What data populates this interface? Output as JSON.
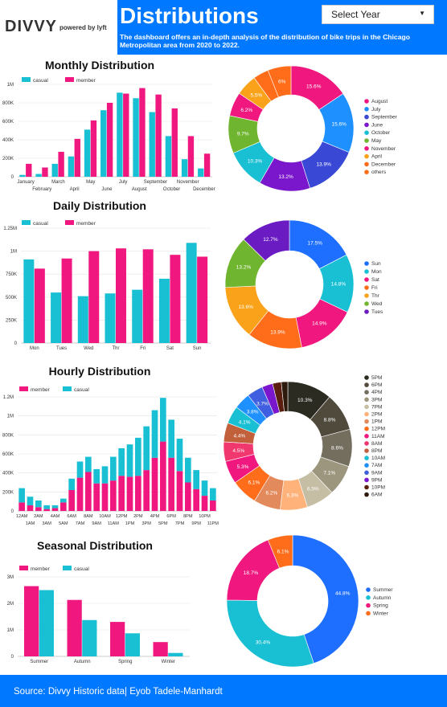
{
  "header": {
    "logo_text": "DIVVY",
    "logo_powered": "powered by lyft",
    "title": "Distributions",
    "description": "The dashboard offers an in-depth analysis of the distribution of bike trips in the Chicago Metropolitan area from 2020 to 2022.",
    "select_label": "Select Year"
  },
  "footer": {
    "source": "Source: Divvy Historic data| Eyob Tadele-Manhardt"
  },
  "colors": {
    "header_bg": "#0078ff",
    "member": "#f0187f",
    "casual": "#19bfd3"
  },
  "chart_data": [
    {
      "type": "bar",
      "title": "Monthly Distribution",
      "categories": [
        "January",
        "February",
        "March",
        "April",
        "May",
        "June",
        "July",
        "August",
        "September",
        "October",
        "November",
        "December"
      ],
      "series": [
        {
          "name": "casual",
          "values": [
            20000,
            30000,
            140000,
            220000,
            510000,
            720000,
            910000,
            850000,
            700000,
            440000,
            190000,
            90000
          ]
        },
        {
          "name": "member",
          "values": [
            140000,
            100000,
            270000,
            410000,
            610000,
            800000,
            900000,
            960000,
            890000,
            740000,
            440000,
            250000
          ]
        }
      ],
      "ylim": [
        0,
        1000000
      ],
      "yticks": [
        "0",
        "200K",
        "400K",
        "600K",
        "800K",
        "1M"
      ],
      "legend_position": "top-left"
    },
    {
      "type": "pie",
      "title": "",
      "labels": [
        "August",
        "July",
        "September",
        "June",
        "October",
        "May",
        "November",
        "April",
        "December",
        "others"
      ],
      "values": [
        15.6,
        15.6,
        13.9,
        13.2,
        10.3,
        9.7,
        6.2,
        5.5,
        4.0,
        6.0
      ],
      "slice_labels": [
        "15.6%",
        "15.6%",
        "13.9%",
        "13.2%",
        "10.3%",
        "9.7%",
        "6.2%",
        "5.5%",
        "",
        "6%"
      ],
      "colors": [
        "#f0187f",
        "#1e90ff",
        "#3949d6",
        "#7a16cc",
        "#19bfd3",
        "#70b52f",
        "#f0187f",
        "#f9a21a",
        "#ff6d1a",
        "#ff6d1a"
      ],
      "legend_position": "right"
    },
    {
      "type": "bar",
      "title": "Daily Distribution",
      "categories": [
        "Mon",
        "Tues",
        "Wed",
        "Thr",
        "Fri",
        "Sat",
        "Sun"
      ],
      "series": [
        {
          "name": "casual",
          "values": [
            910000,
            550000,
            510000,
            540000,
            580000,
            700000,
            1090000
          ]
        },
        {
          "name": "member",
          "values": [
            810000,
            920000,
            1000000,
            1030000,
            1020000,
            960000,
            940000
          ]
        }
      ],
      "ylim": [
        0,
        1250000
      ],
      "yticks": [
        "0",
        "250K",
        "500K",
        "750K",
        "1M",
        "1.25M"
      ],
      "legend_position": "top-left"
    },
    {
      "type": "pie",
      "title": "",
      "labels": [
        "Sun",
        "Mon",
        "Sat",
        "Fri",
        "Thr",
        "Wed",
        "Tues"
      ],
      "values": [
        17.5,
        14.8,
        14.9,
        13.9,
        13.6,
        13.2,
        12.7
      ],
      "slice_labels": [
        "17.5%",
        "14.8%",
        "14.9%",
        "13.9%",
        "13.6%",
        "13.2%",
        "12.7%"
      ],
      "colors": [
        "#1e6fff",
        "#19bfd3",
        "#f0187f",
        "#ff6d1a",
        "#f9a21a",
        "#70b52f",
        "#6a1bc2"
      ],
      "legend_position": "right"
    },
    {
      "type": "bar",
      "title": "Hourly Distribution",
      "categories": [
        "12AM",
        "1AM",
        "2AM",
        "3AM",
        "4AM",
        "5AM",
        "6AM",
        "7AM",
        "8AM",
        "9AM",
        "10AM",
        "11AM",
        "12PM",
        "1PM",
        "2PM",
        "3PM",
        "4PM",
        "5PM",
        "6PM",
        "7PM",
        "8PM",
        "9PM",
        "10PM",
        "11PM"
      ],
      "series": [
        {
          "name": "member",
          "values": [
            90000,
            60000,
            40000,
            20000,
            30000,
            90000,
            220000,
            350000,
            410000,
            290000,
            290000,
            320000,
            370000,
            360000,
            370000,
            430000,
            560000,
            730000,
            560000,
            420000,
            300000,
            230000,
            160000,
            110000
          ]
        },
        {
          "name": "casual",
          "values": [
            150000,
            90000,
            70000,
            40000,
            30000,
            40000,
            120000,
            170000,
            160000,
            150000,
            180000,
            250000,
            290000,
            340000,
            400000,
            460000,
            500000,
            460000,
            400000,
            340000,
            260000,
            200000,
            160000,
            130000
          ]
        }
      ],
      "stacked": true,
      "ylim": [
        0,
        1200000
      ],
      "yticks": [
        "0",
        "200K",
        "400K",
        "600K",
        "800K",
        "1M",
        "1.2M"
      ],
      "legend_position": "top-left"
    },
    {
      "type": "pie",
      "title": "",
      "labels": [
        "5PM",
        "6PM",
        "4PM",
        "3PM",
        "7PM",
        "2PM",
        "1PM",
        "12PM",
        "11AM",
        "8AM",
        "8PM",
        "10AM",
        "7AM",
        "9AM",
        "9PM",
        "10PM",
        "6AM"
      ],
      "values": [
        10.3,
        8.8,
        8.6,
        7.1,
        6.5,
        6.3,
        6.2,
        6.1,
        5.3,
        4.5,
        4.4,
        4.1,
        3.8,
        3.7,
        2.5,
        2.0,
        1.5
      ],
      "slice_labels": [
        "10.3%",
        "8.8%",
        "8.6%",
        "7.1%",
        "6.5%",
        "6.3%",
        "6.2%",
        "6.1%",
        "5.3%",
        "4.5%",
        "4.4%",
        "4.1%",
        "3.8%",
        "3.7%",
        "",
        "",
        ""
      ],
      "colors": [
        "#2b2b22",
        "#4f4a3c",
        "#736e5e",
        "#9c967f",
        "#c5bda4",
        "#ffb27a",
        "#e38a5c",
        "#ff6d1a",
        "#f0187f",
        "#f0386f",
        "#c1603a",
        "#19bfd3",
        "#1e90ff",
        "#3f5fe0",
        "#7a16cc",
        "#5a1e0e",
        "#2e1a0c"
      ],
      "legend_position": "right"
    },
    {
      "type": "bar",
      "title": "Seasonal Distribution",
      "categories": [
        "Summer",
        "Autumn",
        "Spring",
        "Winter"
      ],
      "series": [
        {
          "name": "member",
          "values": [
            2650000,
            2130000,
            1300000,
            540000
          ]
        },
        {
          "name": "casual",
          "values": [
            2500000,
            1370000,
            870000,
            130000
          ]
        }
      ],
      "ylim": [
        0,
        3000000
      ],
      "yticks": [
        "0",
        "1M",
        "2M",
        "3M"
      ],
      "legend_position": "top-left"
    },
    {
      "type": "pie",
      "title": "",
      "labels": [
        "Summer",
        "Autumn",
        "Spring",
        "Winter"
      ],
      "values": [
        44.8,
        30.4,
        18.7,
        6.1
      ],
      "slice_labels": [
        "44.8%",
        "30.4%",
        "18.7%",
        "6.1%"
      ],
      "colors": [
        "#1e6fff",
        "#19bfd3",
        "#f0187f",
        "#ff6d1a"
      ],
      "legend_position": "right"
    }
  ]
}
